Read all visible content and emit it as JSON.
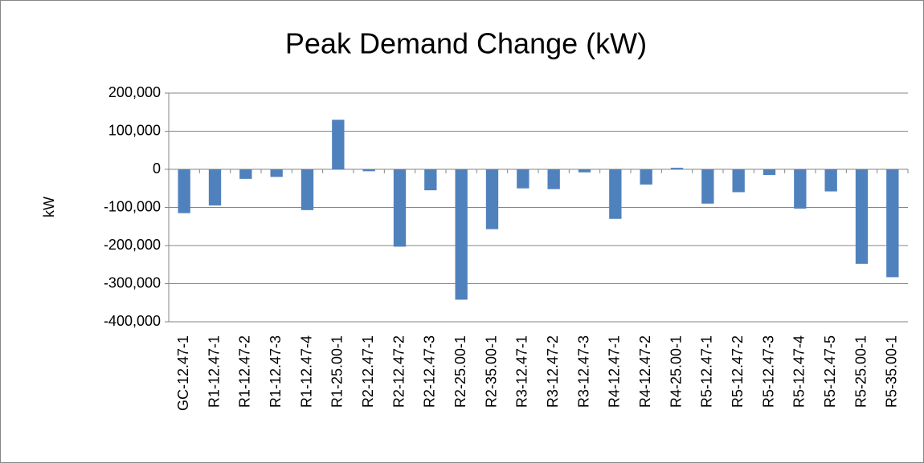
{
  "chart_data": {
    "type": "bar",
    "title": "Peak Demand Change (kW)",
    "y_label": "kW",
    "categories": [
      "GC-12.47-1",
      "R1-12.47-1",
      "R1-12.47-2",
      "R1-12.47-3",
      "R1-12.47-4",
      "R1-25.00-1",
      "R2-12.47-1",
      "R2-12.47-2",
      "R2-12.47-3",
      "R2-25.00-1",
      "R2-35.00-1",
      "R3-12.47-1",
      "R3-12.47-2",
      "R3-12.47-3",
      "R4-12.47-1",
      "R4-12.47-2",
      "R4-25.00-1",
      "R5-12.47-1",
      "R5-12.47-2",
      "R5-12.47-3",
      "R5-12.47-4",
      "R5-12.47-5",
      "R5-25.00-1",
      "R5-35.00-1"
    ],
    "values": [
      -115000,
      -95000,
      -25000,
      -20000,
      -107000,
      130000,
      -5000,
      -203000,
      -55000,
      -342000,
      -157000,
      -50000,
      -52000,
      -8000,
      -130000,
      -40000,
      4000,
      -90000,
      -60000,
      -15000,
      -103000,
      -58000,
      -248000,
      -283000
    ],
    "color": "#4f81bd",
    "ylim": [
      -400000,
      200000
    ],
    "yticks": [
      {
        "value": -400000,
        "label": "-400,000"
      },
      {
        "value": -300000,
        "label": "-300,000"
      },
      {
        "value": -200000,
        "label": "-200,000"
      },
      {
        "value": -100000,
        "label": "-100,000"
      },
      0,
      {
        "value": 100000,
        "label": "100,000"
      },
      {
        "value": 200000,
        "label": "200,000"
      }
    ],
    "grid": true
  }
}
